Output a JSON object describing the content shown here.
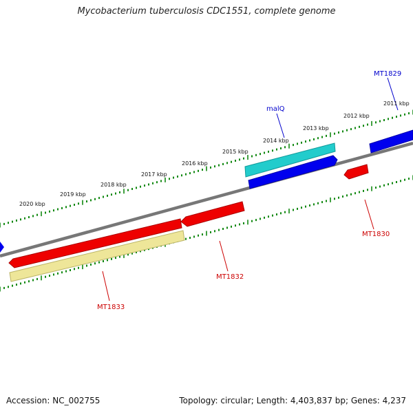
{
  "title": "Mycobacterium tuberculosis CDC1551, complete genome",
  "footer": {
    "accession": "Accession: NC_002755",
    "topology": "Topology: circular; Length: 4,403,837 bp; Genes: 4,237"
  },
  "colors": {
    "backbone": "#777777",
    "ticks": "#118811",
    "cds_forward": "#0000ee",
    "cds_reverse": "#ee0000",
    "rna": "#22cccc",
    "misc": "#eee699",
    "label_forward": "#0000cc",
    "label_reverse": "#cc0000"
  },
  "scale_labels": [
    "2011 kbp",
    "2012 kbp",
    "2013 kbp",
    "2014 kbp",
    "2015 kbp",
    "2016 kbp",
    "2017 kbp",
    "2018 kbp",
    "2019 kbp",
    "2020 kbp"
  ],
  "gene_labels": {
    "mt1829": "MT1829",
    "malq": "malQ",
    "mt1830": "MT1830",
    "mt1832": "MT1832",
    "mt1833": "MT1833"
  }
}
